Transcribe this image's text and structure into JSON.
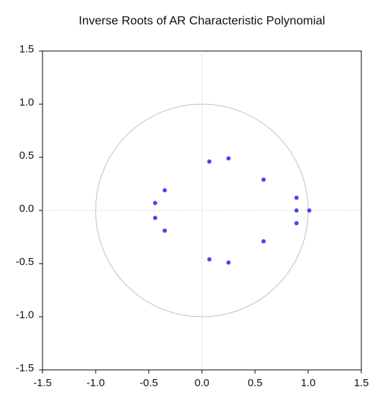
{
  "chart_data": {
    "type": "scatter",
    "title": "Inverse Roots of AR Characteristic Polynomial",
    "x": [
      -0.35,
      -0.44,
      -0.44,
      -0.35,
      0.07,
      0.25,
      0.58,
      0.89,
      0.89,
      1.01,
      0.89,
      0.58,
      0.07,
      0.25
    ],
    "values": [
      0.19,
      0.07,
      -0.07,
      -0.19,
      0.46,
      0.49,
      0.29,
      0.12,
      0,
      0,
      -0.12,
      -0.29,
      -0.46,
      -0.49
    ],
    "color": "#4747f0",
    "xlim": [
      -1.5,
      1.5
    ],
    "ylim": [
      -1.5,
      1.5
    ],
    "xticks": [
      -1.5,
      {
        "value": -1,
        "label": "-1.0"
      },
      -0.5,
      {
        "value": 0,
        "label": "0.0"
      },
      0.5,
      {
        "value": 1,
        "label": "1.0"
      },
      1.5
    ],
    "yticks": [
      -1.5,
      {
        "value": -1,
        "label": "-1.0"
      },
      -0.5,
      {
        "value": 0,
        "label": "0.0"
      },
      0.5,
      {
        "value": 1,
        "label": "1.0"
      },
      1.5
    ],
    "zero_lines": true,
    "unit_circle": true
  }
}
